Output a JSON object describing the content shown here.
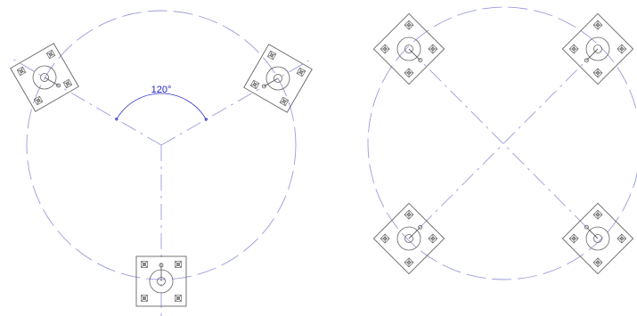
{
  "left_layout": {
    "mount_count": 3,
    "angle_annotation": "120°"
  },
  "right_layout": {
    "mount_count": 4
  },
  "colors": {
    "guide": "#9b9bdc",
    "plate": "#666666",
    "dimension": "#2222cc",
    "background": "#ffffff"
  }
}
